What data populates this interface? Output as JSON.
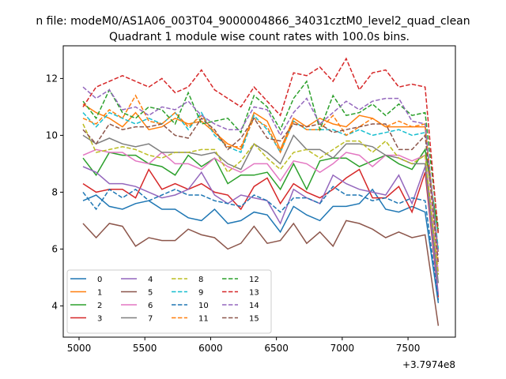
{
  "chart_data": {
    "type": "line",
    "suptitle": "n file: modeM0/AS1A06_003T04_9000004866_34031cztM0_level2_quad_clean",
    "title": "Quadrant 1 module wise count rates with 100.0s bins.",
    "xlabel": "",
    "ylabel": "",
    "x_offset_label": "+3.7974e8",
    "xlim": [
      4880,
      7860
    ],
    "ylim": [
      2.9,
      13.15
    ],
    "xticks": [
      5000,
      5500,
      6000,
      6500,
      7000,
      7500
    ],
    "yticks": [
      4,
      6,
      8,
      10,
      12
    ],
    "grid": false,
    "legend_position": "lower-left",
    "legend_columns": 4,
    "x": [
      5030,
      5130,
      5230,
      5330,
      5430,
      5530,
      5630,
      5730,
      5830,
      5930,
      6030,
      6130,
      6230,
      6330,
      6430,
      6530,
      6630,
      6730,
      6830,
      6930,
      7030,
      7130,
      7230,
      7330,
      7430,
      7530,
      7630,
      7730
    ],
    "series": [
      {
        "name": "0",
        "color": "#1f77b4",
        "values": [
          7.7,
          7.9,
          7.5,
          7.4,
          7.6,
          7.7,
          7.4,
          7.4,
          7.1,
          7.0,
          7.4,
          6.9,
          7.0,
          7.3,
          7.2,
          6.6,
          7.5,
          7.2,
          7.0,
          7.5,
          7.5,
          7.6,
          8.1,
          7.4,
          7.3,
          7.5,
          7.3,
          4.1
        ]
      },
      {
        "name": "1",
        "color": "#ff7f0e",
        "values": [
          11.1,
          10.8,
          10.6,
          10.3,
          10.8,
          10.2,
          10.3,
          10.6,
          10.4,
          10.5,
          10.1,
          9.7,
          9.5,
          10.8,
          10.5,
          9.5,
          10.6,
          10.3,
          10.6,
          10.4,
          10.3,
          10.7,
          10.6,
          10.3,
          10.3,
          10.3,
          10.3,
          5.9
        ]
      },
      {
        "name": "2",
        "color": "#2ca02c",
        "values": [
          9.2,
          8.6,
          9.4,
          9.3,
          9.3,
          9.0,
          8.9,
          8.6,
          9.3,
          8.9,
          9.2,
          8.3,
          8.6,
          8.6,
          8.7,
          8.1,
          9.0,
          8.1,
          9.1,
          9.2,
          9.2,
          8.9,
          9.1,
          9.3,
          9.0,
          8.8,
          9.5,
          6.6
        ]
      },
      {
        "name": "3",
        "color": "#d62728",
        "values": [
          8.3,
          8.0,
          8.1,
          8.1,
          7.8,
          8.8,
          8.1,
          8.3,
          8.1,
          8.3,
          8.0,
          7.9,
          7.4,
          8.2,
          8.5,
          7.6,
          8.3,
          8.0,
          7.8,
          8.1,
          8.5,
          8.8,
          7.8,
          7.8,
          8.2,
          7.3,
          8.7,
          4.3
        ]
      },
      {
        "name": "4",
        "color": "#9467bd",
        "values": [
          8.9,
          8.7,
          8.3,
          8.3,
          8.2,
          8.0,
          7.8,
          7.9,
          8.1,
          8.7,
          7.9,
          7.6,
          7.9,
          7.8,
          7.7,
          6.9,
          8.1,
          7.8,
          7.6,
          8.6,
          8.3,
          8.1,
          8.0,
          7.9,
          8.6,
          7.6,
          8.9,
          4.4
        ]
      },
      {
        "name": "5",
        "color": "#8c564b",
        "values": [
          6.9,
          6.4,
          6.9,
          6.8,
          6.1,
          6.4,
          6.3,
          6.3,
          6.7,
          6.5,
          6.4,
          6.0,
          6.2,
          6.8,
          6.2,
          6.3,
          6.9,
          6.2,
          6.6,
          6.1,
          7.0,
          6.9,
          6.7,
          6.4,
          6.6,
          6.4,
          6.5,
          3.3
        ]
      },
      {
        "name": "6",
        "color": "#e377c2",
        "values": [
          9.3,
          9.5,
          9.4,
          9.4,
          9.1,
          9.0,
          9.4,
          9.0,
          9.0,
          8.8,
          9.2,
          8.9,
          8.7,
          9.0,
          9.0,
          8.4,
          9.1,
          9.0,
          8.7,
          9.0,
          9.4,
          9.3,
          8.9,
          9.3,
          9.3,
          9.1,
          9.3,
          5.2
        ]
      },
      {
        "name": "7",
        "color": "#7f7f7f",
        "values": [
          10.0,
          9.7,
          9.9,
          9.7,
          9.6,
          9.7,
          9.4,
          9.4,
          9.4,
          9.3,
          9.4,
          9.0,
          8.8,
          9.7,
          9.4,
          9.0,
          10.0,
          9.5,
          9.5,
          9.2,
          9.7,
          9.7,
          9.6,
          9.3,
          9.2,
          9.0,
          9.0,
          4.8
        ]
      },
      {
        "name": "8",
        "color": "#bcbd22",
        "values": [
          10.4,
          9.4,
          9.5,
          9.6,
          9.5,
          9.3,
          9.2,
          9.4,
          9.4,
          9.5,
          9.5,
          8.7,
          9.1,
          9.7,
          9.2,
          8.8,
          9.4,
          9.5,
          9.2,
          9.5,
          9.8,
          9.8,
          9.4,
          9.8,
          9.2,
          9.0,
          9.3,
          5.1
        ]
      },
      {
        "name": "9",
        "color": "#17becf",
        "values": [
          10.8,
          10.3,
          10.8,
          10.6,
          10.4,
          10.6,
          10.4,
          10.8,
          10.2,
          10.8,
          10.0,
          9.6,
          9.4,
          10.7,
          10.2,
          9.4,
          10.5,
          10.2,
          10.2,
          10.2,
          10.0,
          10.2,
          10.0,
          10.1,
          10.2,
          10.0,
          10.1,
          6.0
        ]
      },
      {
        "name": "10",
        "color": "#1f77b4",
        "values": [
          8.0,
          7.4,
          8.1,
          7.8,
          8.1,
          7.7,
          7.9,
          8.1,
          7.9,
          7.9,
          7.7,
          7.6,
          7.5,
          7.9,
          7.7,
          7.3,
          7.8,
          7.8,
          7.6,
          8.2,
          7.9,
          7.9,
          7.7,
          7.8,
          7.6,
          7.8,
          7.7,
          4.2
        ]
      },
      {
        "name": "11",
        "color": "#ff7f0e",
        "values": [
          10.6,
          10.4,
          10.9,
          10.6,
          11.4,
          10.5,
          10.4,
          10.8,
          10.3,
          10.7,
          10.1,
          9.6,
          9.6,
          10.6,
          10.3,
          9.4,
          10.5,
          10.2,
          10.2,
          10.7,
          10.0,
          10.3,
          10.6,
          10.3,
          10.5,
          10.3,
          10.4,
          5.5
        ]
      },
      {
        "name": "12",
        "color": "#2ca02c",
        "values": [
          11.2,
          10.6,
          11.6,
          10.8,
          10.6,
          11.0,
          10.9,
          10.4,
          11.5,
          10.4,
          10.5,
          10.6,
          10.1,
          11.4,
          11.0,
          10.2,
          11.3,
          11.9,
          10.2,
          11.4,
          10.7,
          10.8,
          11.1,
          10.7,
          11.1,
          10.7,
          10.8,
          6.7
        ]
      },
      {
        "name": "13",
        "color": "#d62728",
        "values": [
          11.0,
          11.7,
          11.9,
          12.1,
          11.9,
          11.7,
          12.0,
          11.5,
          11.7,
          12.3,
          11.6,
          11.3,
          11.0,
          11.7,
          11.2,
          10.7,
          12.2,
          12.1,
          12.4,
          11.9,
          12.7,
          11.6,
          12.2,
          12.3,
          11.7,
          11.8,
          11.7,
          6.5
        ]
      },
      {
        "name": "14",
        "color": "#9467bd",
        "values": [
          11.7,
          11.3,
          11.6,
          10.9,
          11.0,
          10.7,
          11.0,
          10.9,
          11.2,
          10.7,
          10.4,
          10.2,
          10.2,
          11.0,
          10.9,
          10.0,
          10.8,
          11.3,
          10.4,
          10.8,
          11.2,
          10.9,
          11.2,
          11.3,
          11.3,
          10.5,
          10.4,
          5.8
        ]
      },
      {
        "name": "15",
        "color": "#8c564b",
        "values": [
          10.2,
          9.7,
          10.4,
          10.2,
          10.3,
          10.3,
          10.4,
          10.0,
          9.9,
          10.6,
          10.2,
          9.5,
          9.9,
          10.6,
          9.9,
          9.8,
          10.4,
          10.3,
          10.4,
          10.1,
          10.2,
          10.3,
          10.4,
          10.4,
          9.5,
          9.5,
          10.0,
          5.5
        ]
      }
    ]
  }
}
